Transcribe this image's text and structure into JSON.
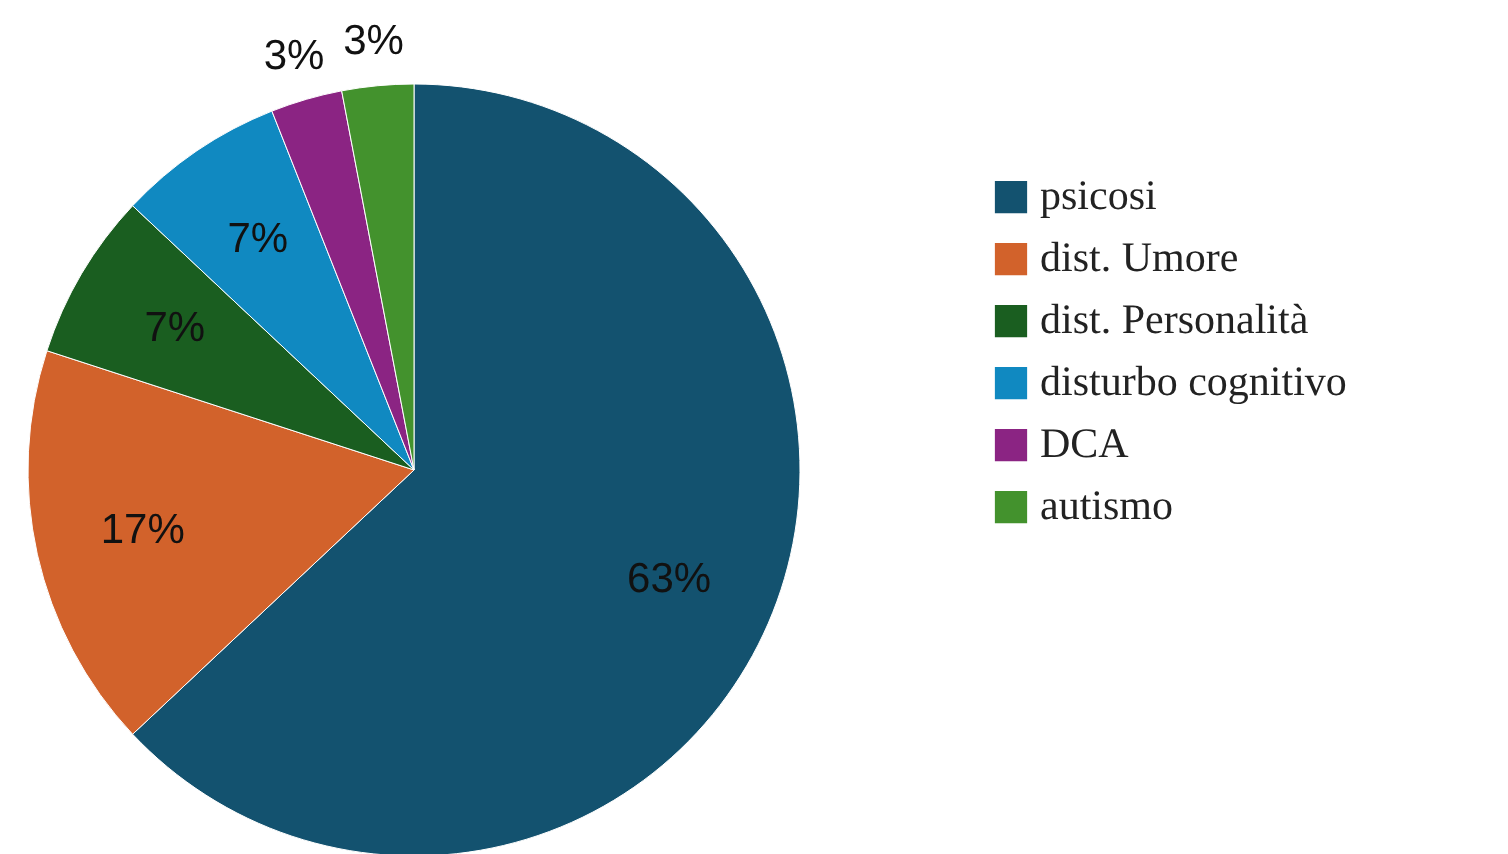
{
  "chart_data": {
    "type": "pie",
    "categories": [
      "psicosi",
      "dist. Umore",
      "dist. Personalità",
      "disturbo cognitivo",
      "DCA",
      "autismo"
    ],
    "values": [
      63,
      17,
      7,
      7,
      3,
      3
    ],
    "value_labels": [
      "63%",
      "17%",
      "7%",
      "7%",
      "3%",
      "3%"
    ],
    "colors": [
      "#13526f",
      "#d2622b",
      "#1a5e20",
      "#1089c1",
      "#8b2483",
      "#43922d"
    ],
    "legend": "right"
  }
}
